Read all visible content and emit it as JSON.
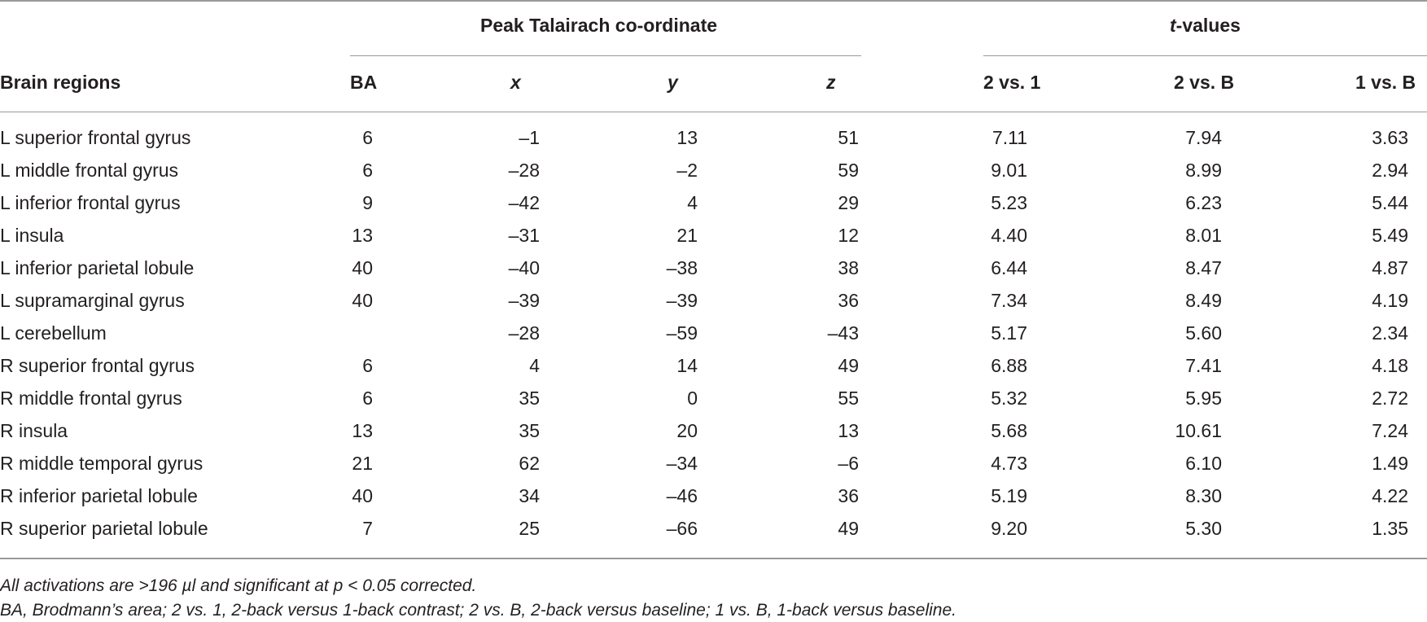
{
  "table": {
    "group_headers": {
      "coords": "Peak Talairach co-ordinate",
      "tvalues_italic": "t",
      "tvalues_rest": "-values"
    },
    "columns": {
      "region": "Brain regions",
      "ba": "BA",
      "x": "x",
      "y": "y",
      "z": "z",
      "t21": "2 vs. 1",
      "t2b": "2 vs. B",
      "t1b": "1 vs. B"
    },
    "rows": [
      {
        "region": "L superior frontal gyrus",
        "ba": "6",
        "x": "–1",
        "y": "13",
        "z": "51",
        "t21": "7.11",
        "t2b": "7.94",
        "t1b": "3.63"
      },
      {
        "region": "L middle frontal gyrus",
        "ba": "6",
        "x": "–28",
        "y": "–2",
        "z": "59",
        "t21": "9.01",
        "t2b": "8.99",
        "t1b": "2.94"
      },
      {
        "region": "L inferior frontal gyrus",
        "ba": "9",
        "x": "–42",
        "y": "4",
        "z": "29",
        "t21": "5.23",
        "t2b": "6.23",
        "t1b": "5.44"
      },
      {
        "region": "L insula",
        "ba": "13",
        "x": "–31",
        "y": "21",
        "z": "12",
        "t21": "4.40",
        "t2b": "8.01",
        "t1b": "5.49"
      },
      {
        "region": "L inferior parietal lobule",
        "ba": "40",
        "x": "–40",
        "y": "–38",
        "z": "38",
        "t21": "6.44",
        "t2b": "8.47",
        "t1b": "4.87"
      },
      {
        "region": "L supramarginal gyrus",
        "ba": "40",
        "x": "–39",
        "y": "–39",
        "z": "36",
        "t21": "7.34",
        "t2b": "8.49",
        "t1b": "4.19"
      },
      {
        "region": "L cerebellum",
        "ba": "",
        "x": "–28",
        "y": "–59",
        "z": "–43",
        "t21": "5.17",
        "t2b": "5.60",
        "t1b": "2.34"
      },
      {
        "region": "R superior frontal gyrus",
        "ba": "6",
        "x": "4",
        "y": "14",
        "z": "49",
        "t21": "6.88",
        "t2b": "7.41",
        "t1b": "4.18"
      },
      {
        "region": "R middle frontal gyrus",
        "ba": "6",
        "x": "35",
        "y": "0",
        "z": "55",
        "t21": "5.32",
        "t2b": "5.95",
        "t1b": "2.72"
      },
      {
        "region": "R insula",
        "ba": "13",
        "x": "35",
        "y": "20",
        "z": "13",
        "t21": "5.68",
        "t2b": "10.61",
        "t1b": "7.24"
      },
      {
        "region": "R middle temporal gyrus",
        "ba": "21",
        "x": "62",
        "y": "–34",
        "z": "–6",
        "t21": "4.73",
        "t2b": "6.10",
        "t1b": "1.49"
      },
      {
        "region": "R inferior parietal lobule",
        "ba": "40",
        "x": "34",
        "y": "–46",
        "z": "36",
        "t21": "5.19",
        "t2b": "8.30",
        "t1b": "4.22"
      },
      {
        "region": "R superior parietal lobule",
        "ba": "7",
        "x": "25",
        "y": "–66",
        "z": "49",
        "t21": "9.20",
        "t2b": "5.30",
        "t1b": "1.35"
      }
    ]
  },
  "footnotes": {
    "line1": "All activations are >196 µl and significant at p < 0.05 corrected.",
    "line2": "BA, Brodmann’s area; 2 vs. 1, 2-back versus 1-back contrast; 2 vs. B, 2-back versus baseline; 1 vs. B, 1-back versus baseline."
  }
}
